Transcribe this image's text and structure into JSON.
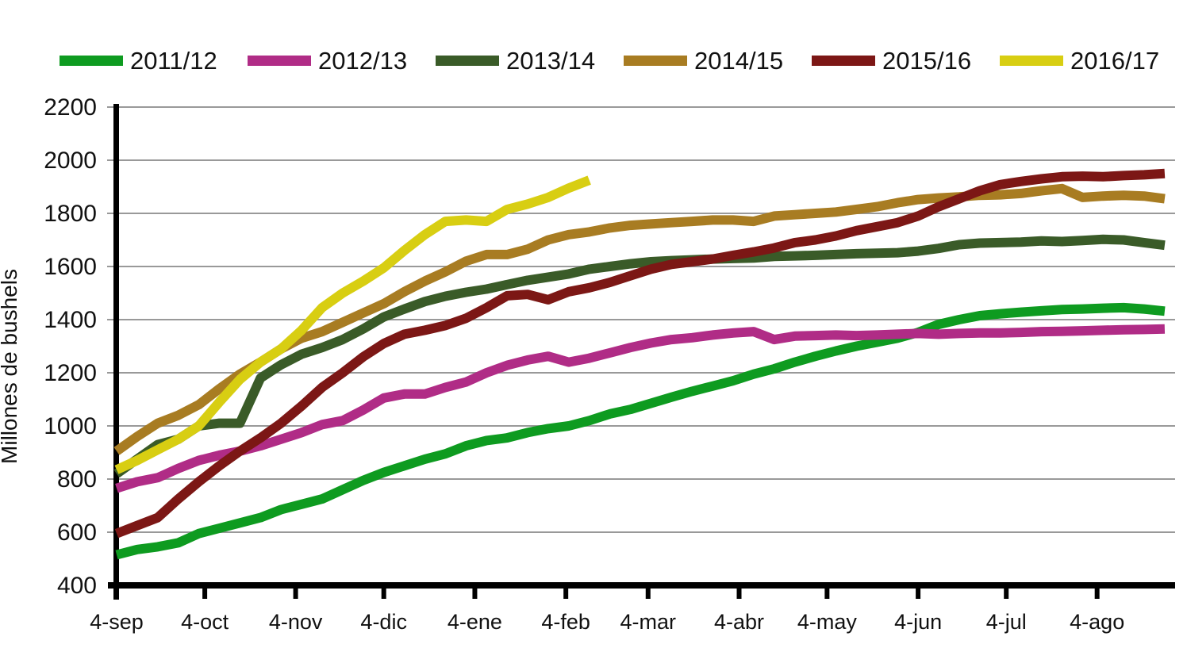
{
  "page": {
    "background": "#ffffff"
  },
  "chart_data": {
    "type": "line",
    "title": "",
    "xlabel": "",
    "ylabel": "Millones de bushels",
    "ylim": [
      400,
      2200
    ],
    "y_ticks": [
      400,
      600,
      800,
      1000,
      1200,
      1400,
      1600,
      1800,
      2000,
      2200
    ],
    "x_tick_labels": [
      "4-sep",
      "4-oct",
      "4-nov",
      "4-dic",
      "4-ene",
      "4-feb",
      "4-mar",
      "4-abr",
      "4-may",
      "4-jun",
      "4-jul",
      "4-ago"
    ],
    "x_tick_weeks": [
      0,
      4.29,
      8.71,
      13,
      17.43,
      21.86,
      25.86,
      30.29,
      34.57,
      39,
      43.29,
      47.71
    ],
    "x_unit": "week-of-marketing-year",
    "grid": "horizontal",
    "grid_color": "#999999",
    "axis_color": "#000000",
    "legend_position": "top",
    "series": [
      {
        "name": "2011/12",
        "color": "#0E9B20",
        "start_week": 0,
        "values": [
          515,
          535,
          545,
          560,
          595,
          615,
          635,
          655,
          685,
          705,
          725,
          760,
          795,
          825,
          850,
          875,
          895,
          925,
          945,
          955,
          975,
          990,
          1000,
          1020,
          1045,
          1062,
          1085,
          1108,
          1130,
          1150,
          1170,
          1195,
          1215,
          1240,
          1262,
          1282,
          1300,
          1315,
          1330,
          1352,
          1382,
          1400,
          1415,
          1422,
          1428,
          1433,
          1438,
          1440,
          1443,
          1445,
          1440,
          1432
        ]
      },
      {
        "name": "2012/13",
        "color": "#B02C86",
        "start_week": 0,
        "values": [
          765,
          790,
          805,
          840,
          870,
          890,
          905,
          925,
          950,
          975,
          1005,
          1020,
          1060,
          1105,
          1120,
          1120,
          1145,
          1165,
          1200,
          1228,
          1248,
          1262,
          1240,
          1255,
          1275,
          1295,
          1312,
          1325,
          1332,
          1342,
          1350,
          1355,
          1325,
          1338,
          1340,
          1342,
          1340,
          1342,
          1345,
          1348,
          1345,
          1348,
          1350,
          1350,
          1352,
          1355,
          1356,
          1358,
          1360,
          1362,
          1363,
          1365
        ]
      },
      {
        "name": "2013/14",
        "color": "#3A5B28",
        "start_week": 0,
        "values": [
          820,
          875,
          930,
          950,
          1000,
          1010,
          1010,
          1180,
          1230,
          1270,
          1295,
          1325,
          1365,
          1410,
          1440,
          1468,
          1488,
          1503,
          1515,
          1532,
          1548,
          1560,
          1572,
          1590,
          1600,
          1610,
          1618,
          1622,
          1625,
          1628,
          1630,
          1632,
          1638,
          1640,
          1642,
          1645,
          1648,
          1650,
          1652,
          1658,
          1668,
          1682,
          1688,
          1690,
          1692,
          1696,
          1694,
          1698,
          1702,
          1700,
          1690,
          1680
        ]
      },
      {
        "name": "2014/15",
        "color": "#A87C22",
        "start_week": 0,
        "values": [
          905,
          960,
          1010,
          1040,
          1080,
          1140,
          1195,
          1240,
          1290,
          1330,
          1355,
          1390,
          1425,
          1460,
          1505,
          1545,
          1580,
          1620,
          1645,
          1645,
          1665,
          1700,
          1720,
          1730,
          1745,
          1755,
          1760,
          1765,
          1770,
          1775,
          1775,
          1770,
          1790,
          1795,
          1800,
          1805,
          1815,
          1825,
          1840,
          1852,
          1858,
          1862,
          1868,
          1870,
          1875,
          1885,
          1893,
          1860,
          1865,
          1868,
          1865,
          1855
        ]
      },
      {
        "name": "2015/16",
        "color": "#7C1715",
        "start_week": 0,
        "values": [
          595,
          625,
          655,
          725,
          790,
          850,
          905,
          955,
          1010,
          1075,
          1145,
          1200,
          1260,
          1310,
          1345,
          1360,
          1378,
          1405,
          1445,
          1490,
          1495,
          1475,
          1505,
          1520,
          1540,
          1565,
          1590,
          1608,
          1618,
          1628,
          1642,
          1655,
          1670,
          1690,
          1700,
          1715,
          1735,
          1750,
          1765,
          1790,
          1825,
          1855,
          1885,
          1908,
          1920,
          1930,
          1938,
          1940,
          1938,
          1942,
          1945,
          1950
        ]
      },
      {
        "name": "2016/17",
        "color": "#D8CE12",
        "start_week": 0,
        "values": [
          835,
          870,
          910,
          950,
          1000,
          1090,
          1175,
          1240,
          1290,
          1360,
          1445,
          1500,
          1545,
          1595,
          1660,
          1720,
          1770,
          1775,
          1770,
          1815,
          1835,
          1860,
          1895,
          1925
        ]
      }
    ]
  }
}
